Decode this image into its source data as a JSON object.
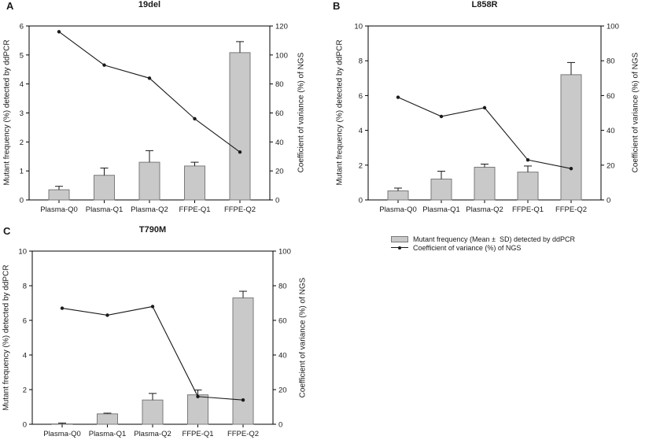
{
  "figure": {
    "background": "#ffffff",
    "bar_fill": "#c9c9c9",
    "bar_stroke": "#7a7a7a",
    "line_color": "#1a1a1a",
    "axis_color": "#000000"
  },
  "legend": {
    "items": [
      {
        "label": "Mutant frequency (Mean ±  SD) detected by ddPCR",
        "swatch": "bar"
      },
      {
        "label": "Coefficient of variance (%) of NGS",
        "swatch": "line-dot"
      }
    ]
  },
  "chart_data": [
    {
      "type": "bar",
      "panel": "A",
      "title": "19del",
      "categories": [
        "Plasma-Q0",
        "Plasma-Q1",
        "Plasma-Q2",
        "FFPE-Q1",
        "FFPE-Q2"
      ],
      "ylabel_left": "Mutant frequency (%) detected by ddPCR",
      "ylabel_right": "Coefficient of variance (%) of NGS",
      "ylim_left": [
        0,
        6
      ],
      "ytick_step_left": 1,
      "ylim_right": [
        0,
        120
      ],
      "ytick_step_right": 20,
      "grid": false,
      "series": [
        {
          "name": "Mutant frequency (Mean ± SD) detected by ddPCR",
          "type": "bar",
          "axis": "left",
          "values": [
            0.35,
            0.85,
            1.3,
            1.17,
            5.08
          ],
          "errors": [
            0.12,
            0.25,
            0.4,
            0.13,
            0.38
          ]
        },
        {
          "name": "Coefficient of variance (%) of NGS",
          "type": "line",
          "axis": "right",
          "values": [
            116,
            93,
            84,
            56,
            33
          ]
        }
      ]
    },
    {
      "type": "bar",
      "panel": "B",
      "title": "L858R",
      "categories": [
        "Plasma-Q0",
        "Plasma-Q1",
        "Plasma-Q2",
        "FFPE-Q1",
        "FFPE-Q2"
      ],
      "ylabel_left": "Mutant frequency (%) detected by ddPCR",
      "ylabel_right": "Coefficient of variance (%) of NGS",
      "ylim_left": [
        0,
        10
      ],
      "ytick_step_left": 2,
      "ylim_right": [
        0,
        100
      ],
      "ytick_step_right": 20,
      "grid": false,
      "series": [
        {
          "name": "Mutant frequency (Mean ± SD) detected by ddPCR",
          "type": "bar",
          "axis": "left",
          "values": [
            0.52,
            1.2,
            1.88,
            1.6,
            7.2
          ],
          "errors": [
            0.16,
            0.45,
            0.18,
            0.35,
            0.7
          ]
        },
        {
          "name": "Coefficient of variance (%) of NGS",
          "type": "line",
          "axis": "right",
          "values": [
            59,
            48,
            53,
            23,
            18
          ]
        }
      ]
    },
    {
      "type": "bar",
      "panel": "C",
      "title": "T790M",
      "categories": [
        "Plasma-Q0",
        "Plasma-Q1",
        "Plasma-Q2",
        "FFPE-Q1",
        "FFPE-Q2"
      ],
      "ylabel_left": "Mutant frequency (%) detected by ddPCR",
      "ylabel_right": "Coefficient of variance (%) of NGS",
      "ylim_left": [
        0,
        10
      ],
      "ytick_step_left": 2,
      "ylim_right": [
        0,
        100
      ],
      "ytick_step_right": 20,
      "grid": false,
      "series": [
        {
          "name": "Mutant frequency (Mean ± SD) detected by ddPCR",
          "type": "bar",
          "axis": "left",
          "values": [
            0.02,
            0.6,
            1.4,
            1.7,
            7.3
          ],
          "errors": [
            0.05,
            0.04,
            0.38,
            0.28,
            0.38
          ]
        },
        {
          "name": "Coefficient of variance (%) of NGS",
          "type": "line",
          "axis": "right",
          "values": [
            67,
            63,
            68,
            16,
            14
          ]
        }
      ]
    }
  ]
}
